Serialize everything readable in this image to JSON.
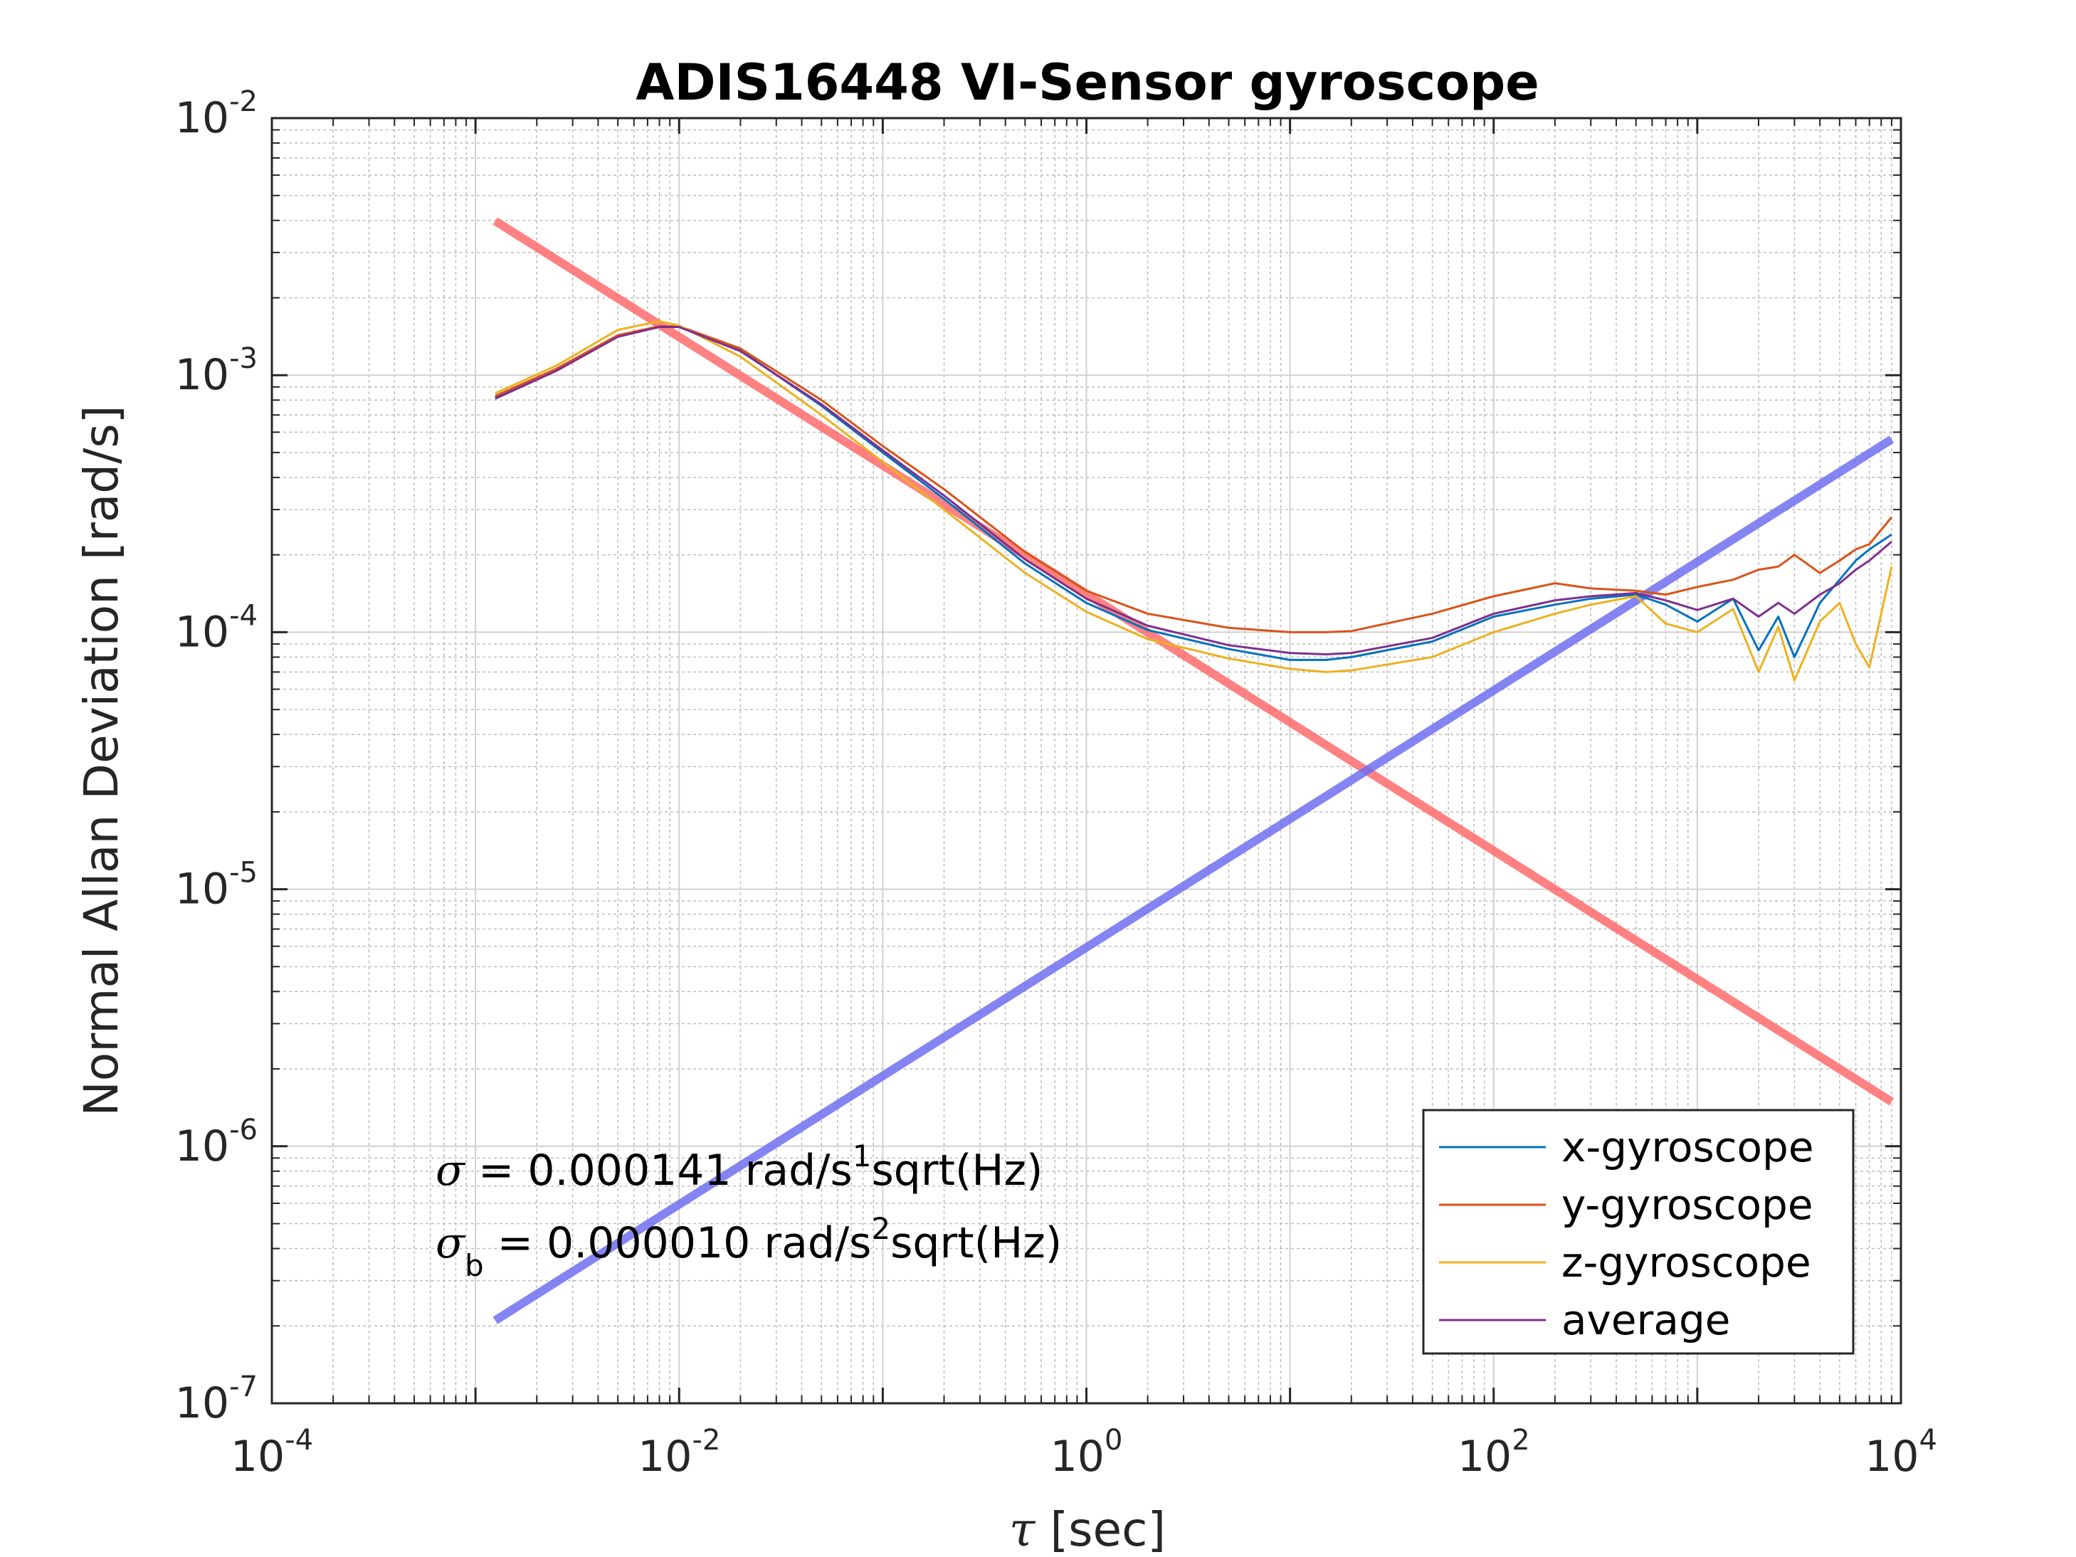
{
  "chart_data": {
    "type": "line",
    "title": "ADIS16448 VI-Sensor gyroscope",
    "xscale": "log",
    "yscale": "log",
    "xlim": [
      0.0001,
      10000
    ],
    "ylim": [
      1e-07,
      0.01
    ],
    "xlabel": {
      "symbol": "τ",
      "text": " [sec]"
    },
    "ylabel": "Normal Allan Deviation [rad/s]",
    "grid": true,
    "x_ticks": [
      {
        "base": "10",
        "exp": "-4",
        "value": 0.0001
      },
      {
        "base": "10",
        "exp": "-2",
        "value": 0.01
      },
      {
        "base": "10",
        "exp": "0",
        "value": 1
      },
      {
        "base": "10",
        "exp": "2",
        "value": 100
      },
      {
        "base": "10",
        "exp": "4",
        "value": 10000
      }
    ],
    "y_ticks": [
      {
        "base": "10",
        "exp": "-7",
        "value": 1e-07
      },
      {
        "base": "10",
        "exp": "-6",
        "value": 1e-06
      },
      {
        "base": "10",
        "exp": "-5",
        "value": 1e-05
      },
      {
        "base": "10",
        "exp": "-4",
        "value": 0.0001
      },
      {
        "base": "10",
        "exp": "-3",
        "value": 0.001
      },
      {
        "base": "10",
        "exp": "-2",
        "value": 0.01
      }
    ],
    "legend_position": "bottom-right",
    "series": [
      {
        "name": "x-gyroscope",
        "color": "#0072BD",
        "x": [
          0.00125,
          0.0025,
          0.005,
          0.008,
          0.01,
          0.02,
          0.05,
          0.1,
          0.2,
          0.5,
          1,
          2,
          5,
          10,
          15,
          20,
          50,
          100,
          200,
          300,
          500,
          700,
          1000,
          1500,
          2000,
          2500,
          3000,
          4000,
          5000,
          6000,
          7000,
          9000
        ],
        "y": [
          0.00082,
          0.00105,
          0.00142,
          0.00155,
          0.00154,
          0.00125,
          0.00076,
          0.0005,
          0.00033,
          0.000185,
          0.00013,
          0.000102,
          8.6e-05,
          7.8e-05,
          7.8e-05,
          8e-05,
          9.2e-05,
          0.000115,
          0.000128,
          0.000135,
          0.00014,
          0.000128,
          0.00011,
          0.000135,
          8.5e-05,
          0.000115,
          8e-05,
          0.00013,
          0.00016,
          0.00019,
          0.00021,
          0.00024
        ]
      },
      {
        "name": "y-gyroscope",
        "color": "#D95319",
        "x": [
          0.00125,
          0.0025,
          0.005,
          0.008,
          0.01,
          0.02,
          0.05,
          0.1,
          0.2,
          0.5,
          1,
          2,
          5,
          10,
          15,
          20,
          50,
          100,
          200,
          300,
          500,
          700,
          1000,
          1500,
          2000,
          2500,
          3000,
          4000,
          5000,
          6000,
          7000,
          9000
        ],
        "y": [
          0.00083,
          0.00106,
          0.00143,
          0.00155,
          0.00155,
          0.00127,
          0.0008,
          0.00053,
          0.00036,
          0.000205,
          0.000145,
          0.000118,
          0.000104,
          0.0001,
          0.0001,
          0.000101,
          0.000118,
          0.000138,
          0.000155,
          0.000148,
          0.000145,
          0.00014,
          0.00015,
          0.00016,
          0.000175,
          0.00018,
          0.0002,
          0.00017,
          0.00019,
          0.00021,
          0.00022,
          0.00028
        ]
      },
      {
        "name": "z-gyroscope",
        "color": "#EDB120",
        "x": [
          0.00125,
          0.0025,
          0.005,
          0.008,
          0.01,
          0.02,
          0.05,
          0.1,
          0.2,
          0.5,
          1,
          2,
          5,
          10,
          15,
          20,
          50,
          100,
          200,
          300,
          500,
          700,
          1000,
          1500,
          2000,
          2500,
          3000,
          4000,
          5000,
          6000,
          7000,
          9000
        ],
        "y": [
          0.00085,
          0.00109,
          0.0015,
          0.00162,
          0.00156,
          0.00118,
          0.0007,
          0.00046,
          0.0003,
          0.00017,
          0.00012,
          9.4e-05,
          7.9e-05,
          7.2e-05,
          7e-05,
          7.1e-05,
          8e-05,
          0.0001,
          0.000118,
          0.000128,
          0.000138,
          0.000108,
          0.0001,
          0.000123,
          7e-05,
          0.000105,
          6.5e-05,
          0.00011,
          0.00013,
          9e-05,
          7.3e-05,
          0.00018
        ]
      },
      {
        "name": "average",
        "color": "#7E2F8E",
        "x": [
          0.00125,
          0.0025,
          0.005,
          0.008,
          0.01,
          0.02,
          0.05,
          0.1,
          0.2,
          0.5,
          1,
          2,
          5,
          10,
          15,
          20,
          50,
          100,
          200,
          300,
          500,
          700,
          1000,
          1500,
          2000,
          2500,
          3000,
          4000,
          5000,
          6000,
          7000,
          9000
        ],
        "y": [
          0.00081,
          0.00104,
          0.00141,
          0.00154,
          0.00154,
          0.00124,
          0.00077,
          0.00051,
          0.00034,
          0.000192,
          0.000135,
          0.000106,
          8.9e-05,
          8.3e-05,
          8.2e-05,
          8.3e-05,
          9.5e-05,
          0.000118,
          0.000133,
          0.000138,
          0.000142,
          0.000133,
          0.000122,
          0.000135,
          0.000115,
          0.00013,
          0.000118,
          0.00014,
          0.000155,
          0.000175,
          0.00019,
          0.000225
        ]
      }
    ],
    "fit_lines": [
      {
        "name": "white-noise-fit",
        "color": "#FF6B6B",
        "opacity": 0.85,
        "x": [
          0.00125,
          9000
        ],
        "y": [
          0.00398,
          1.49e-06
        ]
      },
      {
        "name": "random-walk-fit",
        "color": "#6E6EF0",
        "opacity": 0.85,
        "x": [
          0.00125,
          9000
        ],
        "y": [
          2.1e-07,
          0.000563
        ]
      }
    ],
    "annotations": [
      {
        "symbol": "σ",
        "sub": "",
        "value": " = 0.000141 rad/s",
        "power": "1",
        "unit": "sqrt(Hz)"
      },
      {
        "symbol": "σ",
        "sub": "b",
        "value": " = 0.000010 rad/s",
        "power": "2",
        "unit": "sqrt(Hz)"
      }
    ]
  }
}
